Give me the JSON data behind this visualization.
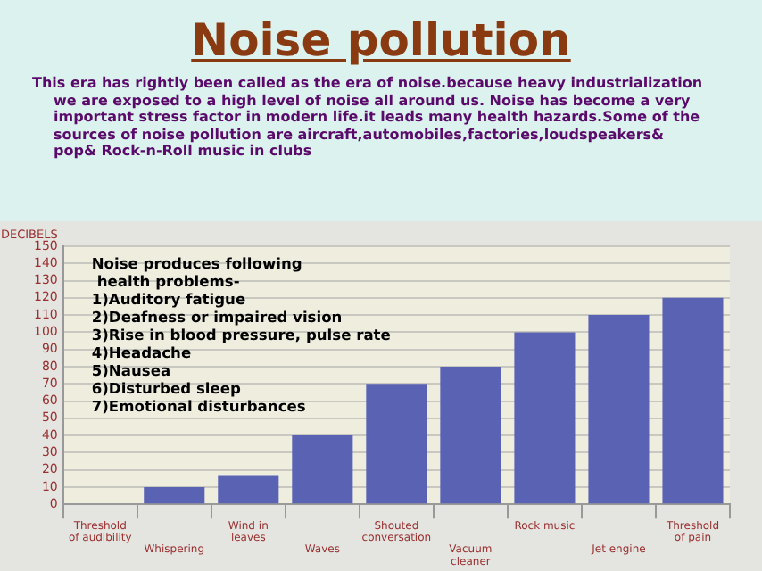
{
  "chart_data": {
    "type": "bar",
    "title": "Noise pollution",
    "subtitle": "This era has rightly been called as the era of noise.because heavy industrialization we are exposed to a high level of noise all around us. Noise has become a very important stress factor in modern life.it leads many health hazards.Some of the sources of noise pollution are aircraft,automobiles,factories,loudspeakers& pop& Rock-n-Roll music in clubs",
    "ylabel": "DECIBELS",
    "categories": [
      "Threshold of audibility",
      "Whispering",
      "Wind in leaves",
      "Waves",
      "Shouted conversation",
      "Vacuum cleaner",
      "Rock music",
      "Jet engine",
      "Threshold of pain"
    ],
    "values": [
      0,
      10,
      17,
      40,
      70,
      80,
      100,
      110,
      120
    ],
    "color": "#5a62b4",
    "ylim": [
      0,
      150
    ],
    "yticks": [
      0,
      10,
      20,
      30,
      40,
      50,
      60,
      70,
      80,
      90,
      100,
      110,
      120,
      130,
      140,
      150
    ],
    "grid": "y",
    "annotations": [
      "Noise produces following health problems-",
      "1)Auditory fatigue",
      "2)Deafness or impaired vision",
      "3)Rise in blood pressure, pulse rate",
      "4)Headache",
      "5)Nausea",
      "6)Disturbed sleep",
      "7)Emotional disturbances"
    ]
  }
}
